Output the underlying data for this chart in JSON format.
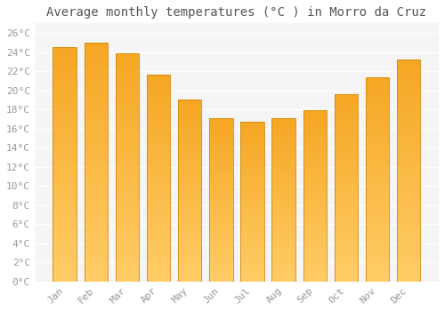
{
  "title": "Average monthly temperatures (°C ) in Morro da Cruz",
  "months": [
    "Jan",
    "Feb",
    "Mar",
    "Apr",
    "May",
    "Jun",
    "Jul",
    "Aug",
    "Sep",
    "Oct",
    "Nov",
    "Dec"
  ],
  "values": [
    24.5,
    25.0,
    23.9,
    21.6,
    19.0,
    17.1,
    16.7,
    17.1,
    17.9,
    19.6,
    21.4,
    23.2
  ],
  "bar_color_top": "#F5A623",
  "bar_color_bottom": "#FFCC66",
  "bar_edge_color": "#D4870A",
  "ylim": [
    0,
    27
  ],
  "yticks": [
    0,
    2,
    4,
    6,
    8,
    10,
    12,
    14,
    16,
    18,
    20,
    22,
    24,
    26
  ],
  "ytick_labels": [
    "0°C",
    "2°C",
    "4°C",
    "6°C",
    "8°C",
    "10°C",
    "12°C",
    "14°C",
    "16°C",
    "18°C",
    "20°C",
    "22°C",
    "24°C",
    "26°C"
  ],
  "background_color": "#ffffff",
  "plot_bg_color": "#f5f5f5",
  "grid_color": "#ffffff",
  "title_fontsize": 10,
  "tick_fontsize": 8,
  "bar_width": 0.75,
  "tick_color": "#999999",
  "title_color": "#555555"
}
